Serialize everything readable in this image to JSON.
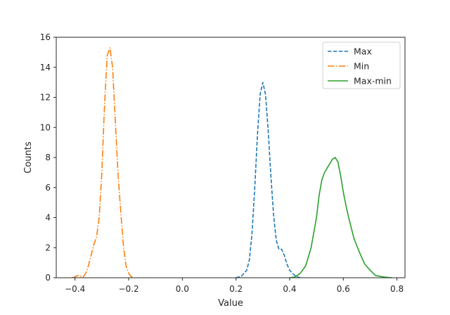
{
  "chart_data": {
    "type": "line",
    "title": "",
    "xlabel": "Value",
    "ylabel": "Counts",
    "xlim": [
      -0.47,
      0.83
    ],
    "ylim": [
      0,
      16
    ],
    "xticks": [
      -0.4,
      -0.2,
      0.0,
      0.2,
      0.4,
      0.6,
      0.8
    ],
    "xtick_labels": [
      "−0.4",
      "−0.2",
      "0.0",
      "0.2",
      "0.4",
      "0.6",
      "0.8"
    ],
    "yticks": [
      0,
      2,
      4,
      6,
      8,
      10,
      12,
      14,
      16
    ],
    "ytick_labels": [
      "0",
      "2",
      "4",
      "6",
      "8",
      "10",
      "12",
      "14",
      "16"
    ],
    "grid": false,
    "legend_position": "top-right",
    "series": [
      {
        "name": "Max",
        "color": "#1f77b4",
        "dash": "dashed",
        "x": [
          0.2,
          0.22,
          0.24,
          0.25,
          0.26,
          0.27,
          0.28,
          0.29,
          0.3,
          0.31,
          0.32,
          0.33,
          0.34,
          0.35,
          0.36,
          0.37,
          0.38,
          0.39,
          0.4,
          0.41,
          0.42,
          0.43,
          0.44
        ],
        "y": [
          0.0,
          0.1,
          0.5,
          1.2,
          3.0,
          6.0,
          9.5,
          12.2,
          13.0,
          12.2,
          9.8,
          6.8,
          4.2,
          2.5,
          1.9,
          1.9,
          1.5,
          0.9,
          0.5,
          0.3,
          0.15,
          0.05,
          0.0
        ]
      },
      {
        "name": "Min",
        "color": "#ff7f0e",
        "dash": "dashdot",
        "x": [
          -0.41,
          -0.4,
          -0.39,
          -0.38,
          -0.37,
          -0.36,
          -0.35,
          -0.34,
          -0.33,
          -0.32,
          -0.31,
          -0.3,
          -0.29,
          -0.28,
          -0.27,
          -0.26,
          -0.25,
          -0.24,
          -0.23,
          -0.22,
          -0.21,
          -0.2,
          -0.19,
          -0.18
        ],
        "y": [
          0.0,
          0.05,
          0.15,
          0.1,
          0.05,
          0.3,
          0.8,
          1.5,
          2.2,
          2.7,
          4.0,
          7.0,
          11.5,
          14.8,
          15.3,
          14.0,
          10.5,
          7.0,
          4.5,
          2.2,
          0.8,
          0.3,
          0.05,
          0.0
        ]
      },
      {
        "name": "Max-min",
        "color": "#2ca02c",
        "dash": "solid",
        "x": [
          0.4,
          0.42,
          0.44,
          0.46,
          0.48,
          0.5,
          0.51,
          0.52,
          0.53,
          0.54,
          0.55,
          0.56,
          0.57,
          0.58,
          0.59,
          0.6,
          0.61,
          0.62,
          0.63,
          0.64,
          0.66,
          0.68,
          0.7,
          0.72,
          0.75,
          0.78
        ],
        "y": [
          0.0,
          0.05,
          0.3,
          0.8,
          2.0,
          4.0,
          5.5,
          6.5,
          7.0,
          7.3,
          7.6,
          7.9,
          8.0,
          7.7,
          6.8,
          5.7,
          4.8,
          4.0,
          3.3,
          2.6,
          1.7,
          0.9,
          0.5,
          0.15,
          0.05,
          0.0
        ]
      }
    ]
  }
}
